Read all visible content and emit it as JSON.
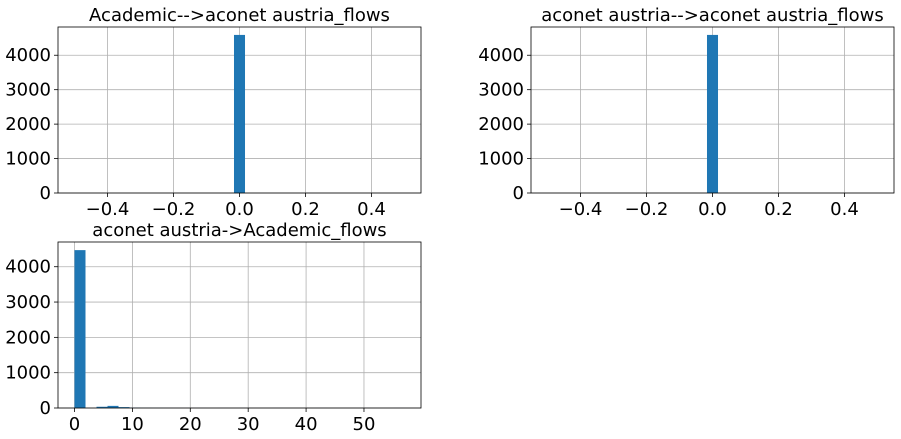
{
  "chart_data": [
    {
      "type": "bar",
      "title": "Academic-->aconet austria_flows",
      "grid": true,
      "xlim": [
        -0.55,
        0.55
      ],
      "ylim": [
        0,
        4820
      ],
      "x_ticks": [
        -0.4,
        -0.2,
        0.0,
        0.2,
        0.4
      ],
      "x_tick_labels": [
        "−0.4",
        "−0.2",
        "0.0",
        "0.2",
        "0.4"
      ],
      "y_ticks": [
        0,
        1000,
        2000,
        3000,
        4000
      ],
      "y_tick_labels": [
        "0",
        "1000",
        "2000",
        "3000",
        "4000"
      ],
      "bins": [
        {
          "x0": -0.0167,
          "x1": 0.0167,
          "value": 4590
        }
      ],
      "color": "#1f77b4"
    },
    {
      "type": "bar",
      "title": "aconet austria-->aconet austria_flows",
      "grid": true,
      "xlim": [
        -0.55,
        0.55
      ],
      "ylim": [
        0,
        4820
      ],
      "x_ticks": [
        -0.4,
        -0.2,
        0.0,
        0.2,
        0.4
      ],
      "x_tick_labels": [
        "−0.4",
        "−0.2",
        "0.0",
        "0.2",
        "0.4"
      ],
      "y_ticks": [
        0,
        1000,
        2000,
        3000,
        4000
      ],
      "y_tick_labels": [
        "0",
        "1000",
        "2000",
        "3000",
        "4000"
      ],
      "bins": [
        {
          "x0": -0.0167,
          "x1": 0.0167,
          "value": 4590
        }
      ],
      "color": "#1f77b4"
    },
    {
      "type": "bar",
      "title": "aconet austria->Academic_flows",
      "grid": true,
      "xlim": [
        -2.85,
        59.85
      ],
      "ylim": [
        0,
        4700
      ],
      "x_ticks": [
        0,
        10,
        20,
        30,
        40,
        50
      ],
      "x_tick_labels": [
        "0",
        "10",
        "20",
        "30",
        "40",
        "50"
      ],
      "y_ticks": [
        0,
        1000,
        2000,
        3000,
        4000
      ],
      "y_tick_labels": [
        "0",
        "1000",
        "2000",
        "3000",
        "4000"
      ],
      "bins": [
        {
          "x0": 0.0,
          "x1": 1.9,
          "value": 4470
        },
        {
          "x0": 1.9,
          "x1": 3.8,
          "value": 0
        },
        {
          "x0": 3.8,
          "x1": 5.7,
          "value": 35
        },
        {
          "x0": 5.7,
          "x1": 7.6,
          "value": 60
        },
        {
          "x0": 7.6,
          "x1": 9.5,
          "value": 25
        },
        {
          "x0": 9.5,
          "x1": 11.4,
          "value": 8
        },
        {
          "x0": 11.4,
          "x1": 13.3,
          "value": 4
        },
        {
          "x0": 13.3,
          "x1": 15.2,
          "value": 3
        },
        {
          "x0": 15.2,
          "x1": 17.1,
          "value": 2
        },
        {
          "x0": 17.1,
          "x1": 19.0,
          "value": 1
        },
        {
          "x0": 19.0,
          "x1": 20.9,
          "value": 1
        },
        {
          "x0": 20.9,
          "x1": 22.8,
          "value": 1
        },
        {
          "x0": 22.8,
          "x1": 24.7,
          "value": 0
        },
        {
          "x0": 24.7,
          "x1": 26.6,
          "value": 1
        },
        {
          "x0": 26.6,
          "x1": 28.5,
          "value": 0
        },
        {
          "x0": 28.5,
          "x1": 30.4,
          "value": 1
        },
        {
          "x0": 30.4,
          "x1": 32.3,
          "value": 0
        },
        {
          "x0": 32.3,
          "x1": 34.2,
          "value": 0
        },
        {
          "x0": 34.2,
          "x1": 36.1,
          "value": 1
        },
        {
          "x0": 36.1,
          "x1": 38.0,
          "value": 0
        },
        {
          "x0": 38.0,
          "x1": 39.9,
          "value": 0
        },
        {
          "x0": 39.9,
          "x1": 41.8,
          "value": 0
        },
        {
          "x0": 41.8,
          "x1": 43.7,
          "value": 1
        },
        {
          "x0": 43.7,
          "x1": 45.6,
          "value": 0
        },
        {
          "x0": 45.6,
          "x1": 47.5,
          "value": 0
        },
        {
          "x0": 47.5,
          "x1": 49.4,
          "value": 0
        },
        {
          "x0": 49.4,
          "x1": 51.3,
          "value": 1
        },
        {
          "x0": 51.3,
          "x1": 53.2,
          "value": 0
        },
        {
          "x0": 53.2,
          "x1": 55.1,
          "value": 0
        },
        {
          "x0": 55.1,
          "x1": 57.0,
          "value": 1
        }
      ],
      "color": "#1f77b4"
    }
  ]
}
